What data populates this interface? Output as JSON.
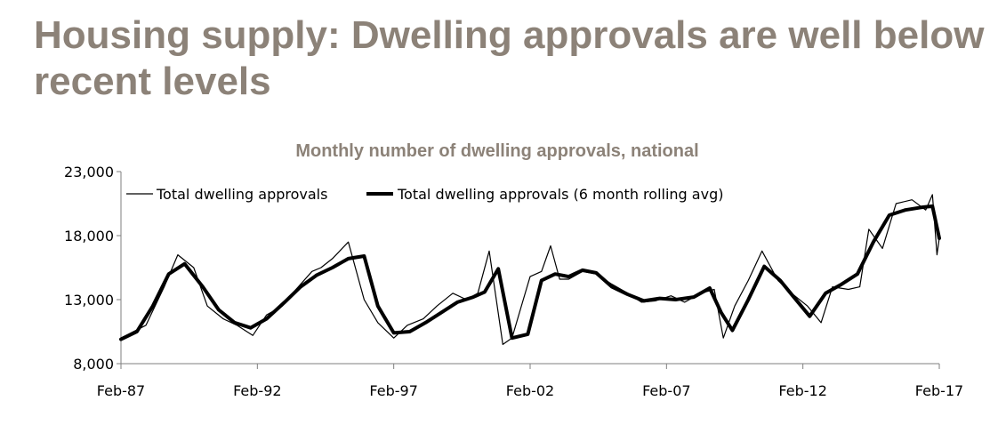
{
  "slide": {
    "title": "Housing supply: Dwelling approvals are well below recent levels"
  },
  "colors": {
    "title": "#8c8278",
    "series": "#000000"
  },
  "chart_data": {
    "type": "line",
    "title": "Monthly number of dwelling approvals, national",
    "xlabel": "",
    "ylabel": "",
    "ylim": [
      8000,
      23000
    ],
    "y_ticks": [
      8000,
      13000,
      18000,
      23000
    ],
    "y_tick_labels": [
      "8,000",
      "13,000",
      "18,000",
      "23,000"
    ],
    "x_range": [
      "Feb-87",
      "Feb-17"
    ],
    "x_tick_labels": [
      "Feb-87",
      "Feb-92",
      "Feb-97",
      "Feb-02",
      "Feb-07",
      "Feb-12",
      "Feb-17"
    ],
    "grid": false,
    "legend_position": "top",
    "series": [
      {
        "name": "Total dwelling approvals",
        "style": "thin",
        "x": [
          "Feb-87",
          "Jan-88",
          "Sep-88",
          "Mar-89",
          "Oct-89",
          "Apr-90",
          "Nov-90",
          "May-91",
          "Dec-91",
          "Jun-92",
          "Jan-93",
          "Jul-93",
          "Feb-94",
          "Jun-94",
          "Nov-94",
          "Jun-95",
          "Jan-96",
          "Jul-96",
          "Feb-97",
          "Aug-97",
          "Mar-98",
          "Sep-98",
          "Apr-99",
          "Oct-99",
          "Mar-00",
          "Aug-00",
          "Feb-01",
          "Jun-01",
          "Nov-01",
          "Feb-02",
          "Jul-02",
          "Nov-02",
          "Mar-03",
          "Jul-03",
          "Jan-04",
          "Jul-04",
          "Feb-05",
          "Aug-05",
          "Mar-06",
          "Sep-06",
          "Apr-07",
          "Oct-07",
          "May-08",
          "Nov-08",
          "Mar-09",
          "Aug-09",
          "Feb-10",
          "Aug-10",
          "Mar-11",
          "Sep-11",
          "Apr-12",
          "Oct-12",
          "Mar-13",
          "Oct-13",
          "Mar-14",
          "Jul-14",
          "Jan-15",
          "Jul-15",
          "Feb-16",
          "Aug-16",
          "Nov-16",
          "Jan-17",
          "Feb-17"
        ],
        "values": [
          10000,
          11000,
          14000,
          16500,
          15500,
          12500,
          11500,
          11000,
          10200,
          11800,
          12500,
          13800,
          15200,
          15500,
          16200,
          17500,
          13000,
          11200,
          10000,
          11000,
          11500,
          12500,
          13500,
          13000,
          13500,
          16800,
          9500,
          10000,
          13000,
          14800,
          15200,
          17200,
          14600,
          14600,
          15200,
          15000,
          14200,
          13600,
          12800,
          12900,
          13300,
          12800,
          13500,
          13800,
          10000,
          12500,
          14500,
          16800,
          14500,
          13500,
          12500,
          11200,
          14000,
          13800,
          14000,
          18500,
          17000,
          20500,
          20800,
          20000,
          21200,
          16500,
          17800
        ]
      },
      {
        "name": "Total dwelling approvals (6 month rolling avg)",
        "style": "thick",
        "x": [
          "Feb-87",
          "Sep-87",
          "Apr-88",
          "Nov-88",
          "Jun-89",
          "Feb-90",
          "Sep-90",
          "Apr-91",
          "Nov-91",
          "Jun-92",
          "Feb-93",
          "Sep-93",
          "Apr-94",
          "Nov-94",
          "Jun-95",
          "Jan-96",
          "Jul-96",
          "Feb-97",
          "Sep-97",
          "Apr-98",
          "Nov-98",
          "Jun-99",
          "Jan-00",
          "Jun-00",
          "Dec-00",
          "Jun-01",
          "Jan-02",
          "Jul-02",
          "Jan-03",
          "Jul-03",
          "Jan-04",
          "Jul-04",
          "Feb-05",
          "Sep-05",
          "Apr-06",
          "Nov-06",
          "Jun-07",
          "Feb-08",
          "Sep-08",
          "Feb-09",
          "Jul-09",
          "Feb-10",
          "Sep-10",
          "Apr-11",
          "Oct-11",
          "May-12",
          "Dec-12",
          "Jul-13",
          "Feb-14",
          "Sep-14",
          "Apr-15",
          "Nov-15",
          "Jun-16",
          "Nov-16",
          "Feb-17"
        ],
        "values": [
          9900,
          10500,
          12500,
          15000,
          15800,
          14000,
          12200,
          11200,
          10800,
          11500,
          12800,
          14000,
          14900,
          15500,
          16200,
          16400,
          12500,
          10400,
          10500,
          11200,
          12000,
          12800,
          13200,
          13600,
          15400,
          10000,
          10300,
          14500,
          15000,
          14800,
          15300,
          15100,
          14000,
          13400,
          12900,
          13100,
          13000,
          13200,
          13900,
          12000,
          10600,
          13000,
          15600,
          14500,
          13200,
          11700,
          13500,
          14200,
          15000,
          17500,
          19600,
          20000,
          20200,
          20300,
          17800
        ]
      }
    ]
  }
}
